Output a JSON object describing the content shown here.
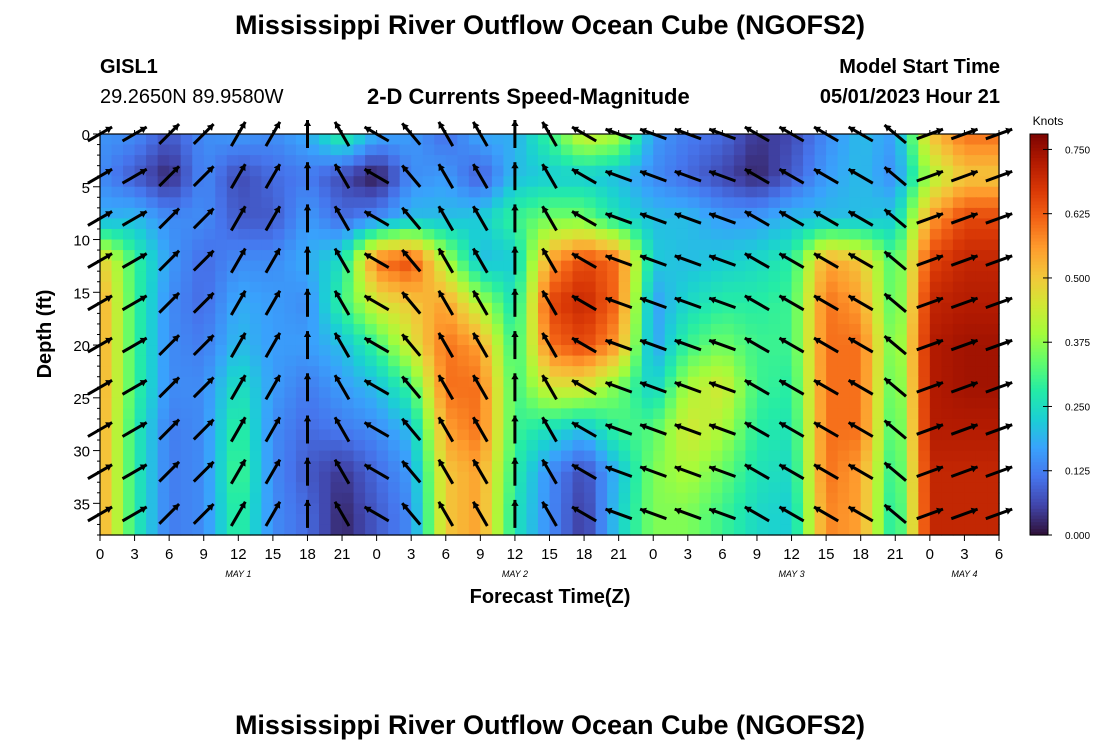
{
  "header": {
    "title": "Mississippi River Outflow Ocean Cube (NGOFS2)",
    "station": "GISL1",
    "coords": "29.2650N  89.9580W",
    "subtitle": "2-D Currents Speed-Magnitude",
    "model_start_label": "Model Start Time",
    "model_start_value": "05/01/2023 Hour 21"
  },
  "footer": {
    "title": "Mississippi River Outflow Ocean Cube (NGOFS2)"
  },
  "chart_data": {
    "type": "heatmap",
    "xlabel": "Forecast Time(Z)",
    "ylabel": "Depth (ft)",
    "xlim": [
      0,
      78
    ],
    "ylim": [
      38,
      0
    ],
    "xticks": [
      0,
      3,
      6,
      9,
      12,
      15,
      18,
      21,
      24,
      27,
      30,
      33,
      36,
      39,
      42,
      45,
      48,
      51,
      54,
      57,
      60,
      63,
      66,
      69,
      72,
      75,
      78
    ],
    "xtick_labels": [
      "0",
      "3",
      "6",
      "9",
      "12",
      "15",
      "18",
      "21",
      "0",
      "3",
      "6",
      "9",
      "12",
      "15",
      "18",
      "21",
      "0",
      "3",
      "6",
      "9",
      "12",
      "15",
      "18",
      "21",
      "0",
      "3",
      "6"
    ],
    "date_labels": [
      {
        "x": 12,
        "label": "MAY 1"
      },
      {
        "x": 36,
        "label": "MAY 2"
      },
      {
        "x": 60,
        "label": "MAY 3"
      },
      {
        "x": 75,
        "label": "MAY 4"
      }
    ],
    "yticks": [
      0,
      5,
      10,
      15,
      20,
      25,
      30,
      35
    ],
    "colorbar": {
      "label": "Knots",
      "range": [
        0,
        0.78
      ],
      "ticks": [
        0.0,
        0.125,
        0.25,
        0.375,
        0.5,
        0.625,
        0.75
      ],
      "tick_labels": [
        "0.000",
        "0.125",
        "0.250",
        "0.375",
        "0.500",
        "0.625",
        "0.750"
      ],
      "colormap": [
        "#30123b",
        "#4145ab",
        "#4675ed",
        "#39a2fc",
        "#1bcfd4",
        "#24eca6",
        "#61fc6c",
        "#a4fc3b",
        "#d1e834",
        "#f3c63a",
        "#fe9b2d",
        "#f36315",
        "#d93806",
        "#b11901",
        "#7a0402"
      ]
    },
    "speed_samples_knots": {
      "depths_ft": [
        0,
        4,
        8,
        12,
        16,
        20,
        24,
        28,
        32,
        36
      ],
      "times_h": [
        0,
        3,
        6,
        9,
        12,
        15,
        18,
        21,
        24,
        27,
        30,
        33,
        36,
        39,
        42,
        45,
        48,
        51,
        54,
        57,
        60,
        63,
        66,
        69,
        72,
        75,
        78
      ],
      "rows": [
        [
          0.15,
          0.14,
          0.08,
          0.14,
          0.16,
          0.14,
          0.18,
          0.3,
          0.18,
          0.16,
          0.1,
          0.18,
          0.18,
          0.3,
          0.45,
          0.4,
          0.16,
          0.12,
          0.1,
          0.04,
          0.06,
          0.14,
          0.2,
          0.16,
          0.5,
          0.6,
          0.6
        ],
        [
          0.14,
          0.08,
          0.02,
          0.14,
          0.06,
          0.1,
          0.12,
          0.06,
          0.0,
          0.14,
          0.16,
          0.08,
          0.2,
          0.22,
          0.22,
          0.2,
          0.14,
          0.1,
          0.06,
          0.02,
          0.08,
          0.16,
          0.2,
          0.14,
          0.4,
          0.5,
          0.5
        ],
        [
          0.18,
          0.2,
          0.14,
          0.14,
          0.08,
          0.08,
          0.16,
          0.1,
          0.14,
          0.2,
          0.2,
          0.22,
          0.3,
          0.35,
          0.35,
          0.25,
          0.2,
          0.2,
          0.16,
          0.16,
          0.2,
          0.2,
          0.2,
          0.22,
          0.55,
          0.65,
          0.65
        ],
        [
          0.5,
          0.3,
          0.16,
          0.1,
          0.14,
          0.14,
          0.18,
          0.25,
          0.6,
          0.65,
          0.4,
          0.2,
          0.22,
          0.55,
          0.65,
          0.6,
          0.22,
          0.2,
          0.22,
          0.24,
          0.28,
          0.55,
          0.5,
          0.3,
          0.65,
          0.7,
          0.7
        ],
        [
          0.55,
          0.3,
          0.14,
          0.1,
          0.18,
          0.16,
          0.14,
          0.3,
          0.45,
          0.5,
          0.55,
          0.4,
          0.25,
          0.65,
          0.7,
          0.6,
          0.16,
          0.24,
          0.28,
          0.28,
          0.3,
          0.6,
          0.55,
          0.3,
          0.7,
          0.72,
          0.72
        ],
        [
          0.55,
          0.3,
          0.14,
          0.12,
          0.2,
          0.16,
          0.16,
          0.2,
          0.3,
          0.45,
          0.6,
          0.55,
          0.28,
          0.6,
          0.65,
          0.55,
          0.16,
          0.3,
          0.35,
          0.3,
          0.3,
          0.6,
          0.6,
          0.32,
          0.72,
          0.74,
          0.74
        ],
        [
          0.55,
          0.3,
          0.14,
          0.14,
          0.26,
          0.16,
          0.12,
          0.16,
          0.2,
          0.3,
          0.6,
          0.6,
          0.3,
          0.45,
          0.45,
          0.35,
          0.22,
          0.4,
          0.45,
          0.3,
          0.28,
          0.6,
          0.6,
          0.3,
          0.72,
          0.74,
          0.74
        ],
        [
          0.55,
          0.28,
          0.12,
          0.14,
          0.3,
          0.14,
          0.1,
          0.12,
          0.14,
          0.2,
          0.55,
          0.6,
          0.3,
          0.25,
          0.2,
          0.3,
          0.32,
          0.45,
          0.4,
          0.28,
          0.26,
          0.6,
          0.6,
          0.28,
          0.72,
          0.72,
          0.72
        ],
        [
          0.55,
          0.28,
          0.12,
          0.14,
          0.32,
          0.14,
          0.08,
          0.04,
          0.1,
          0.16,
          0.5,
          0.55,
          0.28,
          0.14,
          0.06,
          0.2,
          0.36,
          0.4,
          0.34,
          0.26,
          0.24,
          0.6,
          0.55,
          0.26,
          0.7,
          0.7,
          0.7
        ],
        [
          0.55,
          0.28,
          0.12,
          0.14,
          0.3,
          0.14,
          0.1,
          0.02,
          0.08,
          0.14,
          0.5,
          0.55,
          0.26,
          0.14,
          0.04,
          0.22,
          0.36,
          0.36,
          0.3,
          0.24,
          0.22,
          0.58,
          0.55,
          0.24,
          0.7,
          0.7,
          0.7
        ]
      ]
    },
    "direction_samples_deg": {
      "depths_ft": [
        0,
        4,
        8,
        12,
        16,
        20,
        24,
        28,
        32,
        36
      ],
      "times_h": [
        0,
        3,
        6,
        9,
        12,
        15,
        18,
        21,
        24,
        27,
        30,
        33,
        36,
        39,
        42,
        45,
        48,
        51,
        54,
        57,
        60,
        63,
        66,
        69,
        72,
        75,
        78
      ],
      "rows": [
        [
          -30,
          -30,
          -45,
          -45,
          -60,
          -60,
          -90,
          -120,
          -150,
          -130,
          -120,
          -120,
          -90,
          -120,
          -150,
          -160,
          -160,
          -160,
          -160,
          -150,
          -150,
          -150,
          -150,
          -140,
          -20,
          -20,
          -20
        ],
        [
          -30,
          -30,
          -45,
          -45,
          -60,
          -60,
          -90,
          -120,
          -150,
          -130,
          -120,
          -120,
          -90,
          -120,
          -150,
          -160,
          -160,
          -160,
          -160,
          -150,
          -150,
          -150,
          -150,
          -140,
          -20,
          -20,
          -20
        ],
        [
          -30,
          -30,
          -45,
          -45,
          -60,
          -60,
          -90,
          -120,
          -150,
          -130,
          -120,
          -120,
          -90,
          -120,
          -150,
          -160,
          -160,
          -160,
          -160,
          -150,
          -150,
          -150,
          -150,
          -140,
          -20,
          -20,
          -20
        ],
        [
          -30,
          -30,
          -45,
          -45,
          -60,
          -60,
          -90,
          -120,
          -150,
          -130,
          -120,
          -120,
          -90,
          -120,
          -150,
          -160,
          -160,
          -160,
          -160,
          -150,
          -150,
          -150,
          -150,
          -140,
          -20,
          -20,
          -20
        ],
        [
          -30,
          -30,
          -45,
          -45,
          -60,
          -60,
          -90,
          -120,
          -150,
          -130,
          -120,
          -120,
          -90,
          -120,
          -150,
          -160,
          -160,
          -160,
          -160,
          -150,
          -150,
          -150,
          -150,
          -140,
          -20,
          -20,
          -20
        ],
        [
          -30,
          -30,
          -45,
          -45,
          -60,
          -60,
          -90,
          -120,
          -150,
          -130,
          -120,
          -120,
          -90,
          -120,
          -150,
          -160,
          -160,
          -160,
          -160,
          -150,
          -150,
          -150,
          -150,
          -140,
          -20,
          -20,
          -20
        ],
        [
          -30,
          -30,
          -45,
          -45,
          -60,
          -60,
          -90,
          -120,
          -150,
          -130,
          -120,
          -120,
          -90,
          -120,
          -150,
          -160,
          -160,
          -160,
          -160,
          -150,
          -150,
          -150,
          -150,
          -140,
          -20,
          -20,
          -20
        ],
        [
          -30,
          -30,
          -45,
          -45,
          -60,
          -60,
          -90,
          -120,
          -150,
          -130,
          -120,
          -120,
          -90,
          -120,
          -150,
          -160,
          -160,
          -160,
          -160,
          -150,
          -150,
          -150,
          -150,
          -140,
          -20,
          -20,
          -20
        ],
        [
          -30,
          -30,
          -45,
          -45,
          -60,
          -60,
          -90,
          -120,
          -150,
          -130,
          -120,
          -120,
          -90,
          -120,
          -150,
          -160,
          -160,
          -160,
          -160,
          -150,
          -150,
          -150,
          -150,
          -140,
          -20,
          -20,
          -20
        ],
        [
          -30,
          -30,
          -45,
          -45,
          -60,
          -60,
          -90,
          -120,
          -150,
          -130,
          -120,
          -120,
          -90,
          -120,
          -150,
          -160,
          -160,
          -160,
          -160,
          -150,
          -150,
          -150,
          -150,
          -140,
          -20,
          -20,
          -20
        ]
      ]
    }
  }
}
